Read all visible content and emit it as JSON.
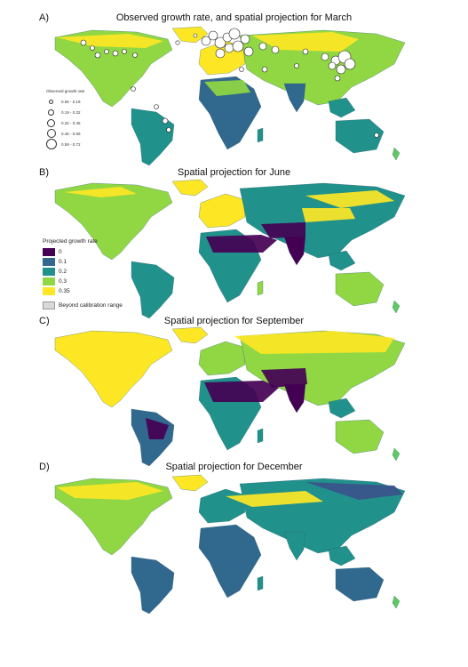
{
  "panels": [
    {
      "letter": "A)",
      "title": "Observed growth rate, and spatial projection for March",
      "month": "march"
    },
    {
      "letter": "B)",
      "title": "Spatial projection for June",
      "month": "june"
    },
    {
      "letter": "C)",
      "title": "Spatial projection for September",
      "month": "september"
    },
    {
      "letter": "D)",
      "title": "Spatial projection for December",
      "month": "december"
    }
  ],
  "legend_observed": {
    "title": "Observed growth rate",
    "items": [
      "0.06 - 0.19",
      "0.19 - 0.32",
      "0.32 - 0.45",
      "0.45 - 0.59",
      "0.59 - 0.72"
    ]
  },
  "legend_projected": {
    "title": "Projected growth rate",
    "items": [
      {
        "label": "0",
        "color": "#440154"
      },
      {
        "label": "0.1",
        "color": "#31688e"
      },
      {
        "label": "0.2",
        "color": "#21918c"
      },
      {
        "label": "0.3",
        "color": "#90d743"
      },
      {
        "label": "0.35",
        "color": "#fde725"
      }
    ],
    "beyond": "Beyond calibration range"
  }
}
